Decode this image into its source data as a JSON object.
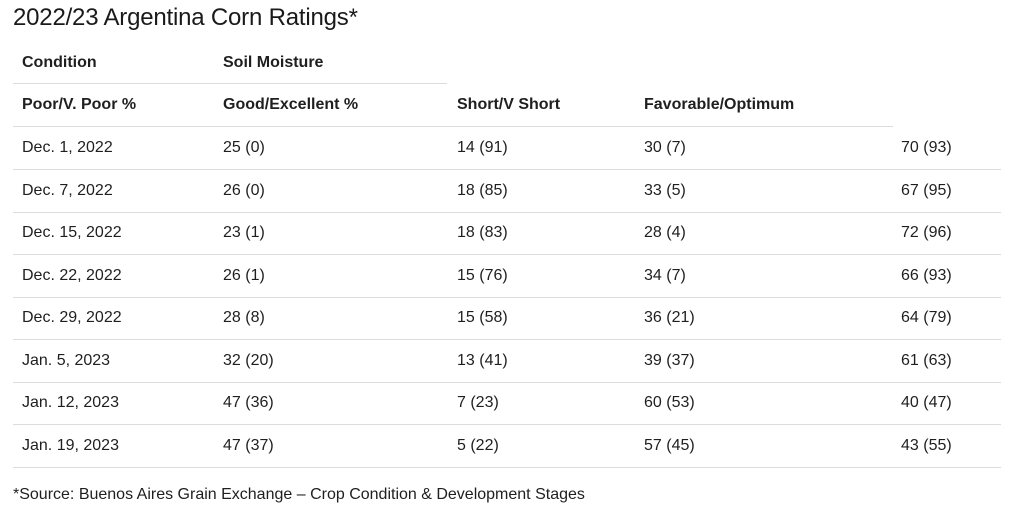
{
  "title": "2022/23 Argentina Corn Ratings*",
  "header": {
    "group_condition": "Condition",
    "group_soil": "Soil Moisture",
    "columns": [
      "Poor/V. Poor %",
      "Good/Excellent %",
      "Short/V Short",
      "Favorable/Optimum"
    ]
  },
  "rows": [
    {
      "date": "Dec. 1, 2022",
      "v1": "25 (0)",
      "v2": "14 (91)",
      "v3": "30 (7)",
      "v4": "70 (93)"
    },
    {
      "date": "Dec. 7, 2022",
      "v1": "26 (0)",
      "v2": "18 (85)",
      "v3": "33 (5)",
      "v4": "67 (95)"
    },
    {
      "date": "Dec. 15, 2022",
      "v1": "23 (1)",
      "v2": "18 (83)",
      "v3": "28 (4)",
      "v4": "72 (96)"
    },
    {
      "date": "Dec. 22, 2022",
      "v1": "26 (1)",
      "v2": "15 (76)",
      "v3": "34 (7)",
      "v4": "66 (93)"
    },
    {
      "date": "Dec. 29, 2022",
      "v1": "28 (8)",
      "v2": "15 (58)",
      "v3": "36 (21)",
      "v4": "64 (79)"
    },
    {
      "date": "Jan. 5, 2023",
      "v1": "32 (20)",
      "v2": "13 (41)",
      "v3": "39 (37)",
      "v4": "61 (63)"
    },
    {
      "date": "Jan. 12, 2023",
      "v1": "47 (36)",
      "v2": "7 (23)",
      "v3": "60 (53)",
      "v4": "40 (47)"
    },
    {
      "date": "Jan. 19, 2023",
      "v1": "47 (37)",
      "v2": "5 (22)",
      "v3": "57 (45)",
      "v4": "43 (55)"
    }
  ],
  "source": "*Source: Buenos Aires Grain Exchange – Crop Condition & Development Stages"
}
